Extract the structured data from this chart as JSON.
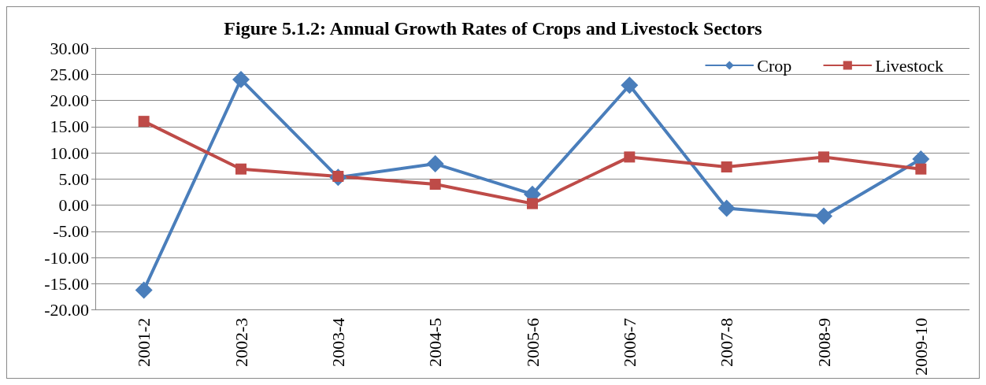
{
  "chart_data": {
    "type": "line",
    "title": "Figure 5.1.2: Annual Growth Rates of Crops and Livestock Sectors",
    "categories": [
      "2001-2",
      "2002-3",
      "2003-4",
      "2004-5",
      "2005-6",
      "2006-7",
      "2007-8",
      "2008-9",
      "2009-10"
    ],
    "series": [
      {
        "name": "Crop",
        "color": "#4a7ebb",
        "marker": "diamond",
        "values": [
          -16.2,
          24.0,
          5.3,
          7.9,
          2.1,
          22.9,
          -0.6,
          -2.1,
          8.8
        ]
      },
      {
        "name": "Livestock",
        "color": "#be4b48",
        "marker": "square",
        "values": [
          16.0,
          6.9,
          5.5,
          4.0,
          0.3,
          9.2,
          7.3,
          9.2,
          6.9
        ]
      }
    ],
    "ylim": [
      -20,
      30
    ],
    "yticks": [
      {
        "value": -20,
        "label": "-20.00"
      },
      {
        "value": -15,
        "label": "-15.00"
      },
      {
        "value": -10,
        "label": "-10.00"
      },
      {
        "value": -5,
        "label": "-5.00"
      },
      {
        "value": 0,
        "label": "0.00"
      },
      {
        "value": 5,
        "label": "5.00"
      },
      {
        "value": 10,
        "label": "10.00"
      },
      {
        "value": 15,
        "label": "15.00"
      },
      {
        "value": 20,
        "label": "20.00"
      },
      {
        "value": 25,
        "label": "25.00"
      },
      {
        "value": 30,
        "label": "30.00"
      }
    ],
    "grid": "y",
    "legend": "top right",
    "line_style": "solid"
  }
}
